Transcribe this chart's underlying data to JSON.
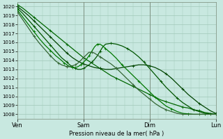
{
  "xlabel": "Pression niveau de la mer( hPa )",
  "xlim": [
    0,
    72
  ],
  "ylim": [
    1007.5,
    1020.5
  ],
  "yticks": [
    1008,
    1009,
    1010,
    1011,
    1012,
    1013,
    1014,
    1015,
    1016,
    1017,
    1018,
    1019,
    1020
  ],
  "xtick_positions": [
    0,
    24,
    48,
    72
  ],
  "xtick_labels": [
    "Ven",
    "Sam",
    "Dim",
    "Lun"
  ],
  "bg_color": "#c8e8e0",
  "grid_color": "#a0c8b8",
  "lines": [
    {
      "x": [
        0,
        2,
        4,
        6,
        8,
        10,
        12,
        14,
        16,
        18,
        20,
        22,
        24,
        26,
        28,
        30,
        32,
        34,
        36,
        38,
        40,
        42,
        44,
        46,
        48,
        50,
        52,
        54,
        56,
        58,
        60,
        62,
        64,
        66,
        68,
        70,
        72
      ],
      "y": [
        1020.2,
        1019.8,
        1019.3,
        1018.8,
        1018.3,
        1017.8,
        1017.3,
        1016.8,
        1016.3,
        1015.8,
        1015.3,
        1014.8,
        1014.3,
        1013.9,
        1013.5,
        1013.1,
        1012.7,
        1012.3,
        1012.0,
        1011.7,
        1011.4,
        1011.1,
        1010.8,
        1010.5,
        1010.2,
        1009.9,
        1009.6,
        1009.4,
        1009.2,
        1009.0,
        1008.8,
        1008.7,
        1008.5,
        1008.4,
        1008.2,
        1008.1,
        1008.0
      ],
      "color": "#006600",
      "lw": 0.9,
      "marker": true
    },
    {
      "x": [
        0,
        2,
        4,
        6,
        8,
        10,
        12,
        14,
        16,
        18,
        20,
        22,
        24,
        26,
        28,
        30,
        32,
        34,
        36,
        38,
        40,
        42,
        44,
        46,
        48,
        50,
        52,
        54,
        56,
        58,
        60,
        62,
        64,
        66,
        68,
        70,
        72
      ],
      "y": [
        1020.0,
        1019.5,
        1019.0,
        1018.4,
        1017.8,
        1017.2,
        1016.6,
        1016.0,
        1015.4,
        1014.8,
        1014.3,
        1013.9,
        1013.6,
        1013.4,
        1013.2,
        1013.1,
        1013.0,
        1013.0,
        1013.1,
        1013.2,
        1013.3,
        1013.4,
        1013.5,
        1013.5,
        1013.4,
        1013.2,
        1012.9,
        1012.5,
        1012.0,
        1011.4,
        1010.8,
        1010.2,
        1009.7,
        1009.2,
        1008.8,
        1008.4,
        1008.1
      ],
      "color": "#004400",
      "lw": 0.9,
      "marker": true
    },
    {
      "x": [
        0,
        2,
        4,
        6,
        8,
        10,
        12,
        14,
        16,
        18,
        19,
        20,
        21,
        22,
        23,
        24,
        25,
        26,
        27,
        28,
        29,
        30,
        31,
        32,
        34,
        36,
        38,
        40,
        42,
        44,
        46,
        48,
        50,
        52,
        54,
        56,
        58,
        60,
        62,
        64,
        66,
        68,
        70,
        72
      ],
      "y": [
        1019.8,
        1019.2,
        1018.5,
        1017.8,
        1017.1,
        1016.4,
        1015.7,
        1015.0,
        1014.3,
        1013.8,
        1013.5,
        1013.3,
        1013.1,
        1013.0,
        1013.0,
        1013.1,
        1013.3,
        1013.5,
        1013.8,
        1014.1,
        1014.5,
        1015.0,
        1015.5,
        1015.8,
        1015.9,
        1015.8,
        1015.6,
        1015.3,
        1014.9,
        1014.4,
        1013.8,
        1013.1,
        1012.4,
        1011.7,
        1011.0,
        1010.4,
        1009.8,
        1009.3,
        1008.9,
        1008.5,
        1008.3,
        1008.1,
        1008.05,
        1008.0
      ],
      "color": "#005500",
      "lw": 0.9,
      "marker": true
    },
    {
      "x": [
        0,
        2,
        4,
        6,
        8,
        10,
        12,
        14,
        16,
        17,
        18,
        19,
        20,
        21,
        22,
        23,
        24,
        25,
        26,
        27,
        28,
        29,
        30,
        31,
        32,
        34,
        36,
        38,
        40,
        42,
        44,
        46,
        48,
        50,
        52,
        54,
        56,
        58,
        60,
        62,
        64,
        66,
        68,
        70,
        72
      ],
      "y": [
        1019.6,
        1018.8,
        1018.0,
        1017.2,
        1016.4,
        1015.7,
        1015.1,
        1014.5,
        1014.0,
        1013.7,
        1013.5,
        1013.3,
        1013.2,
        1013.2,
        1013.3,
        1013.5,
        1013.8,
        1014.1,
        1014.5,
        1015.0,
        1015.5,
        1015.8,
        1015.8,
        1015.6,
        1015.3,
        1014.8,
        1014.2,
        1013.5,
        1012.9,
        1012.3,
        1011.7,
        1011.1,
        1010.5,
        1009.9,
        1009.4,
        1008.9,
        1008.6,
        1008.3,
        1008.1,
        1008.05,
        1008.0,
        1008.0,
        1008.0,
        1008.0,
        1008.0
      ],
      "color": "#007700",
      "lw": 0.9,
      "marker": true
    },
    {
      "x": [
        0,
        2,
        4,
        6,
        8,
        10,
        12,
        13,
        14,
        15,
        16,
        17,
        18,
        19,
        20,
        21,
        22,
        23,
        24,
        25,
        26,
        27,
        28,
        29,
        30,
        32,
        34,
        36,
        38,
        40,
        42,
        44,
        46,
        48,
        50,
        52,
        54,
        56,
        58,
        60,
        62,
        64,
        66,
        68,
        70,
        72
      ],
      "y": [
        1019.4,
        1018.5,
        1017.6,
        1016.7,
        1015.9,
        1015.2,
        1014.5,
        1014.2,
        1013.9,
        1013.7,
        1013.5,
        1013.4,
        1013.3,
        1013.3,
        1013.4,
        1013.5,
        1013.7,
        1014.0,
        1014.3,
        1014.6,
        1014.9,
        1014.9,
        1014.8,
        1014.6,
        1014.4,
        1014.0,
        1013.6,
        1013.1,
        1012.5,
        1011.9,
        1011.3,
        1010.7,
        1010.2,
        1009.7,
        1009.2,
        1008.8,
        1008.5,
        1008.3,
        1008.1,
        1008.0,
        1008.0,
        1008.0,
        1008.0,
        1008.0,
        1008.0,
        1008.0
      ],
      "color": "#336633",
      "lw": 0.9,
      "marker": true
    }
  ]
}
